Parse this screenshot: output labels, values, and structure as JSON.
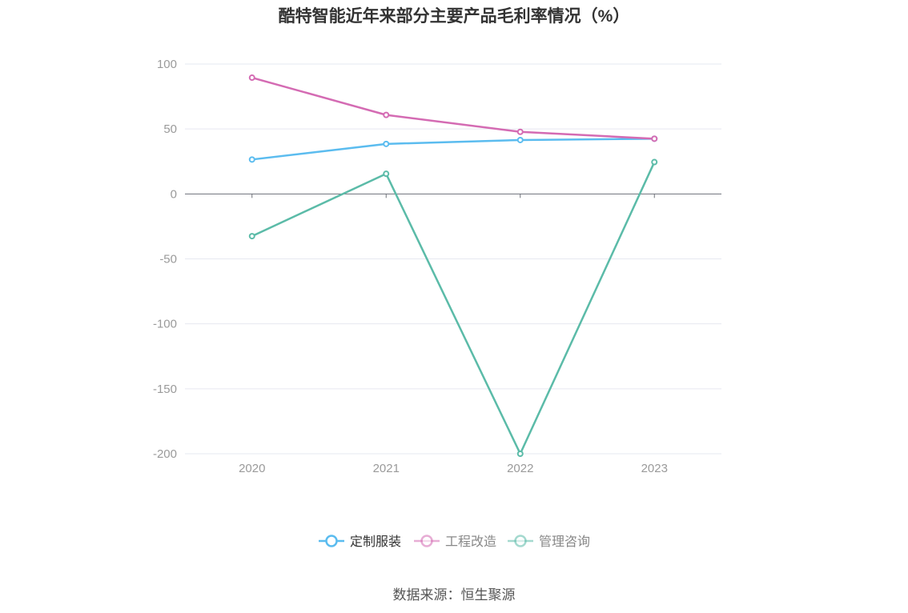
{
  "chart_data": {
    "type": "line",
    "title": "酷特智能近年来部分主要产品毛利率情况（%）",
    "categories": [
      "2020",
      "2021",
      "2022",
      "2023"
    ],
    "ylim": [
      -200,
      100
    ],
    "yticks": [
      "100",
      "50",
      "0",
      "-50",
      "-100",
      "-150",
      "-200"
    ],
    "grid": true,
    "legend_position": "bottom",
    "series": [
      {
        "name": "定制服装",
        "color": "#5bbcef",
        "values": [
          26.5,
          38.5,
          41.5,
          42.5
        ]
      },
      {
        "name": "工程改造",
        "color": "#d46bb3",
        "values": [
          89.5,
          60.8,
          47.8,
          42.5
        ]
      },
      {
        "name": "管理咨询",
        "color": "#5bbba8",
        "values": [
          -32.5,
          15.5,
          -200,
          24.5
        ]
      }
    ]
  },
  "source": "数据来源：恒生聚源"
}
